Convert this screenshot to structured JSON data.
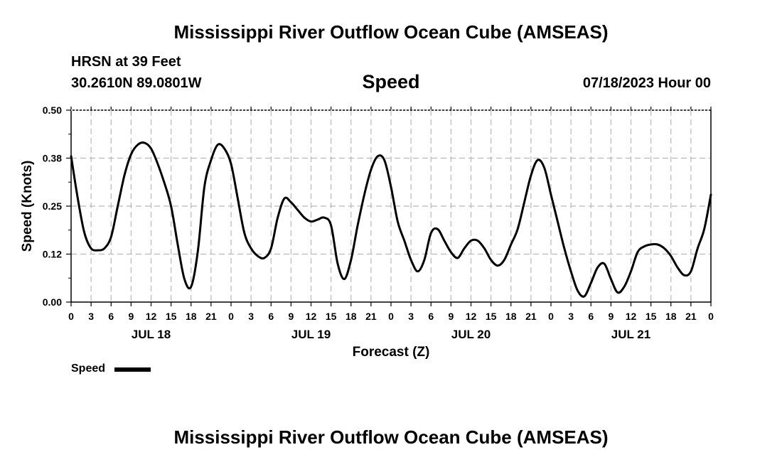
{
  "titles": {
    "top": "Mississippi River Outflow Ocean Cube (AMSEAS)",
    "bottom": "Mississippi River Outflow Ocean Cube (AMSEAS)"
  },
  "header": {
    "station": "HRSN at 39 Feet",
    "coords": "30.2610N  89.0801W",
    "variable": "Speed",
    "datetime": "07/18/2023 Hour 00"
  },
  "chart_data": {
    "type": "line",
    "title": "Speed",
    "xlabel": "Forecast (Z)",
    "ylabel": "Speed (Knots)",
    "xlim": [
      0,
      96
    ],
    "ylim": [
      0,
      0.5
    ],
    "yticks": [
      "0.00",
      "0.12",
      "0.25",
      "0.38",
      "0.50"
    ],
    "ytick_values": [
      0,
      0.125,
      0.25,
      0.375,
      0.5
    ],
    "xtick_hours": [
      0,
      3,
      6,
      9,
      12,
      15,
      18,
      21,
      24,
      27,
      30,
      33,
      36,
      39,
      42,
      45,
      48,
      51,
      54,
      57,
      60,
      63,
      66,
      69,
      72,
      75,
      78,
      81,
      84,
      87,
      90,
      93,
      96
    ],
    "xtick_labels": [
      "0",
      "3",
      "6",
      "9",
      "12",
      "15",
      "18",
      "21",
      "0",
      "3",
      "6",
      "9",
      "12",
      "15",
      "18",
      "21",
      "0",
      "3",
      "6",
      "9",
      "12",
      "15",
      "18",
      "21",
      "0",
      "3",
      "6",
      "9",
      "12",
      "15",
      "18",
      "21",
      "0"
    ],
    "day_labels": [
      {
        "label": "JUL 18",
        "hour": 12
      },
      {
        "label": "JUL 19",
        "hour": 36
      },
      {
        "label": "JUL 20",
        "hour": 60
      },
      {
        "label": "JUL 21",
        "hour": 84
      }
    ],
    "grid": true,
    "legend": "bottom-left",
    "series": [
      {
        "name": "Speed",
        "color": "#000000",
        "x": [
          0,
          1,
          2,
          3,
          4,
          5,
          6,
          7,
          8,
          9,
          10,
          11,
          12,
          13,
          14,
          15,
          16,
          17,
          18,
          19,
          20,
          21,
          22,
          23,
          24,
          25,
          26,
          27,
          28,
          29,
          30,
          31,
          32,
          33,
          34,
          35,
          36,
          37,
          38,
          39,
          40,
          41,
          42,
          43,
          44,
          45,
          46,
          47,
          48,
          49,
          50,
          51,
          52,
          53,
          54,
          55,
          56,
          57,
          58,
          59,
          60,
          61,
          62,
          63,
          64,
          65,
          66,
          67,
          68,
          69,
          70,
          71,
          72,
          73,
          74,
          75,
          76,
          77,
          78,
          79,
          80,
          81,
          82,
          83,
          84,
          85,
          86,
          87,
          88,
          89,
          90,
          91,
          92,
          93,
          94,
          95,
          96
        ],
        "values": [
          0.38,
          0.27,
          0.18,
          0.14,
          0.135,
          0.14,
          0.17,
          0.25,
          0.33,
          0.385,
          0.41,
          0.415,
          0.4,
          0.36,
          0.31,
          0.25,
          0.15,
          0.06,
          0.04,
          0.13,
          0.3,
          0.37,
          0.41,
          0.4,
          0.36,
          0.27,
          0.18,
          0.14,
          0.12,
          0.115,
          0.14,
          0.22,
          0.27,
          0.26,
          0.24,
          0.22,
          0.21,
          0.215,
          0.22,
          0.2,
          0.1,
          0.06,
          0.11,
          0.2,
          0.28,
          0.345,
          0.38,
          0.37,
          0.3,
          0.21,
          0.16,
          0.11,
          0.08,
          0.11,
          0.18,
          0.19,
          0.16,
          0.13,
          0.115,
          0.14,
          0.16,
          0.16,
          0.14,
          0.11,
          0.095,
          0.11,
          0.15,
          0.19,
          0.26,
          0.33,
          0.37,
          0.35,
          0.28,
          0.21,
          0.14,
          0.08,
          0.03,
          0.015,
          0.05,
          0.09,
          0.1,
          0.06,
          0.025,
          0.04,
          0.08,
          0.13,
          0.145,
          0.15,
          0.15,
          0.14,
          0.12,
          0.09,
          0.07,
          0.08,
          0.14,
          0.19,
          0.28
        ]
      }
    ]
  }
}
